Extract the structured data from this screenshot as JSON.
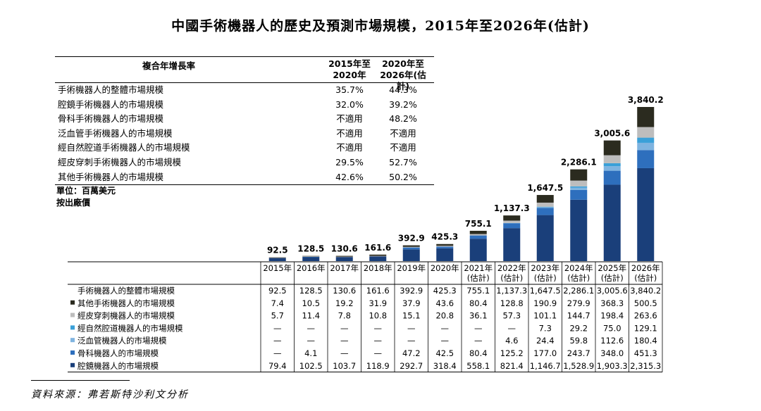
{
  "title": "中國手術機器人的歷史及預測市場規模，2015年至2026年(估計)",
  "cagr_table": {
    "header_label": "複合年增長率",
    "col1": [
      "2015年至",
      "2020年"
    ],
    "col2": [
      "2020年至",
      "2026年(估計)"
    ],
    "rows": [
      {
        "name": "手術機器人的整體市場規模",
        "a": "35.7%",
        "b": "44.3%"
      },
      {
        "name": "腔鏡手術機器人的市場規模",
        "a": "32.0%",
        "b": "39.2%"
      },
      {
        "name": "骨科手術機器人的市場規模",
        "a": "不適用",
        "b": "48.2%"
      },
      {
        "name": "泛血管手術機器人的市場規模",
        "a": "不適用",
        "b": "不適用"
      },
      {
        "name": "經自然腔道手術機器人的市場規模",
        "a": "不適用",
        "b": "不適用"
      },
      {
        "name": "經皮穿刺手術機器人的市場規模",
        "a": "29.5%",
        "b": "52.7%"
      },
      {
        "name": "其他手術機器人的市場規模",
        "a": "42.6%",
        "b": "50.2%"
      }
    ]
  },
  "unit_lines": [
    "單位：百萬美元",
    "按出廠價"
  ],
  "source": "資料來源：弗若斯特沙利文分析",
  "colors": {
    "laparoscopic": "#1a3f7a",
    "orthopedic": "#2e6fbd",
    "vascular": "#7fb4e0",
    "natural_orifice": "#3aa0d8",
    "percutaneous": "#bdbdbd",
    "other": "#2b2b1f"
  },
  "chart_data": {
    "type": "bar",
    "stacked": true,
    "categories": [
      "2015年",
      "2016年",
      "2017年",
      "2018年",
      "2019年",
      "2020年",
      "2021年\n(估計)",
      "2022年\n(估計)",
      "2023年\n(估計)",
      "2024年\n(估計)",
      "2025年\n(估計)",
      "2026年\n(估計)"
    ],
    "totals_label": "手術機器人的整體市場規模",
    "totals": [
      92.5,
      128.5,
      130.6,
      161.6,
      392.9,
      425.3,
      755.1,
      1137.3,
      1647.5,
      2286.1,
      3005.6,
      3840.2
    ],
    "total_labels": [
      "92.5",
      "128.5",
      "130.6",
      "161.6",
      "392.9",
      "425.3",
      "755.1",
      "1,137.3",
      "1,647.5",
      "2,286.1",
      "3,005.6",
      "3,840.2"
    ],
    "series": [
      {
        "name": "其他手術機器人的市場規模",
        "color_key": "other",
        "values": [
          7.4,
          10.5,
          19.2,
          31.9,
          37.9,
          43.6,
          80.4,
          128.8,
          190.9,
          279.9,
          368.3,
          500.5
        ],
        "labels": [
          "7.4",
          "10.5",
          "19.2",
          "31.9",
          "37.9",
          "43.6",
          "80.4",
          "128.8",
          "190.9",
          "279.9",
          "368.3",
          "500.5"
        ]
      },
      {
        "name": "經皮穿刺機器人的市場規模",
        "color_key": "percutaneous",
        "values": [
          5.7,
          11.4,
          7.8,
          10.8,
          15.1,
          20.8,
          36.1,
          57.3,
          101.1,
          144.7,
          198.4,
          263.6
        ],
        "labels": [
          "5.7",
          "11.4",
          "7.8",
          "10.8",
          "15.1",
          "20.8",
          "36.1",
          "57.3",
          "101.1",
          "144.7",
          "198.4",
          "263.6"
        ]
      },
      {
        "name": "經自然腔道機器人的市場規模",
        "color_key": "natural_orifice",
        "values": [
          0,
          0,
          0,
          0,
          0,
          0,
          0,
          0,
          7.3,
          29.2,
          75.0,
          129.1
        ],
        "labels": [
          "—",
          "—",
          "—",
          "—",
          "—",
          "—",
          "—",
          "—",
          "7.3",
          "29.2",
          "75.0",
          "129.1"
        ]
      },
      {
        "name": "泛血管機器人的市場規模",
        "color_key": "vascular",
        "values": [
          0,
          0,
          0,
          0,
          0,
          0,
          0,
          4.6,
          24.4,
          59.8,
          112.6,
          180.4
        ],
        "labels": [
          "—",
          "—",
          "—",
          "—",
          "—",
          "—",
          "—",
          "4.6",
          "24.4",
          "59.8",
          "112.6",
          "180.4"
        ]
      },
      {
        "name": "骨科機器人的市場規模",
        "color_key": "orthopedic",
        "values": [
          0,
          4.1,
          0,
          0,
          47.2,
          42.5,
          80.4,
          125.2,
          177.0,
          243.7,
          348.0,
          451.3
        ],
        "labels": [
          "—",
          "4.1",
          "—",
          "—",
          "47.2",
          "42.5",
          "80.4",
          "125.2",
          "177.0",
          "243.7",
          "348.0",
          "451.3"
        ]
      },
      {
        "name": "腔鏡機器人的市場規模",
        "color_key": "laparoscopic",
        "values": [
          79.4,
          102.5,
          103.7,
          118.9,
          292.7,
          318.4,
          558.1,
          821.4,
          1146.7,
          1528.9,
          1903.3,
          2315.3
        ],
        "labels": [
          "79.4",
          "102.5",
          "103.7",
          "118.9",
          "292.7",
          "318.4",
          "558.1",
          "821.4",
          "1,146.7",
          "1,528.9",
          "1,903.3",
          "2,315.3"
        ]
      }
    ],
    "stack_order_bottom_to_top": [
      "腔鏡機器人的市場規模",
      "骨科機器人的市場規模",
      "泛血管機器人的市場規模",
      "經自然腔道機器人的市場規模",
      "經皮穿刺機器人的市場規模",
      "其他手術機器人的市場規模"
    ],
    "total_labels_row": "手術機器人的整體市場規模",
    "total_row_labels": [
      "92.5",
      "128.5",
      "130.6",
      "161.6",
      "392.9",
      "425.3",
      "755.1",
      "1,137.3",
      "1,647.5",
      "2,286.1",
      "3,005.6",
      "3,840.2"
    ],
    "ylim": [
      0,
      3840.2
    ]
  }
}
